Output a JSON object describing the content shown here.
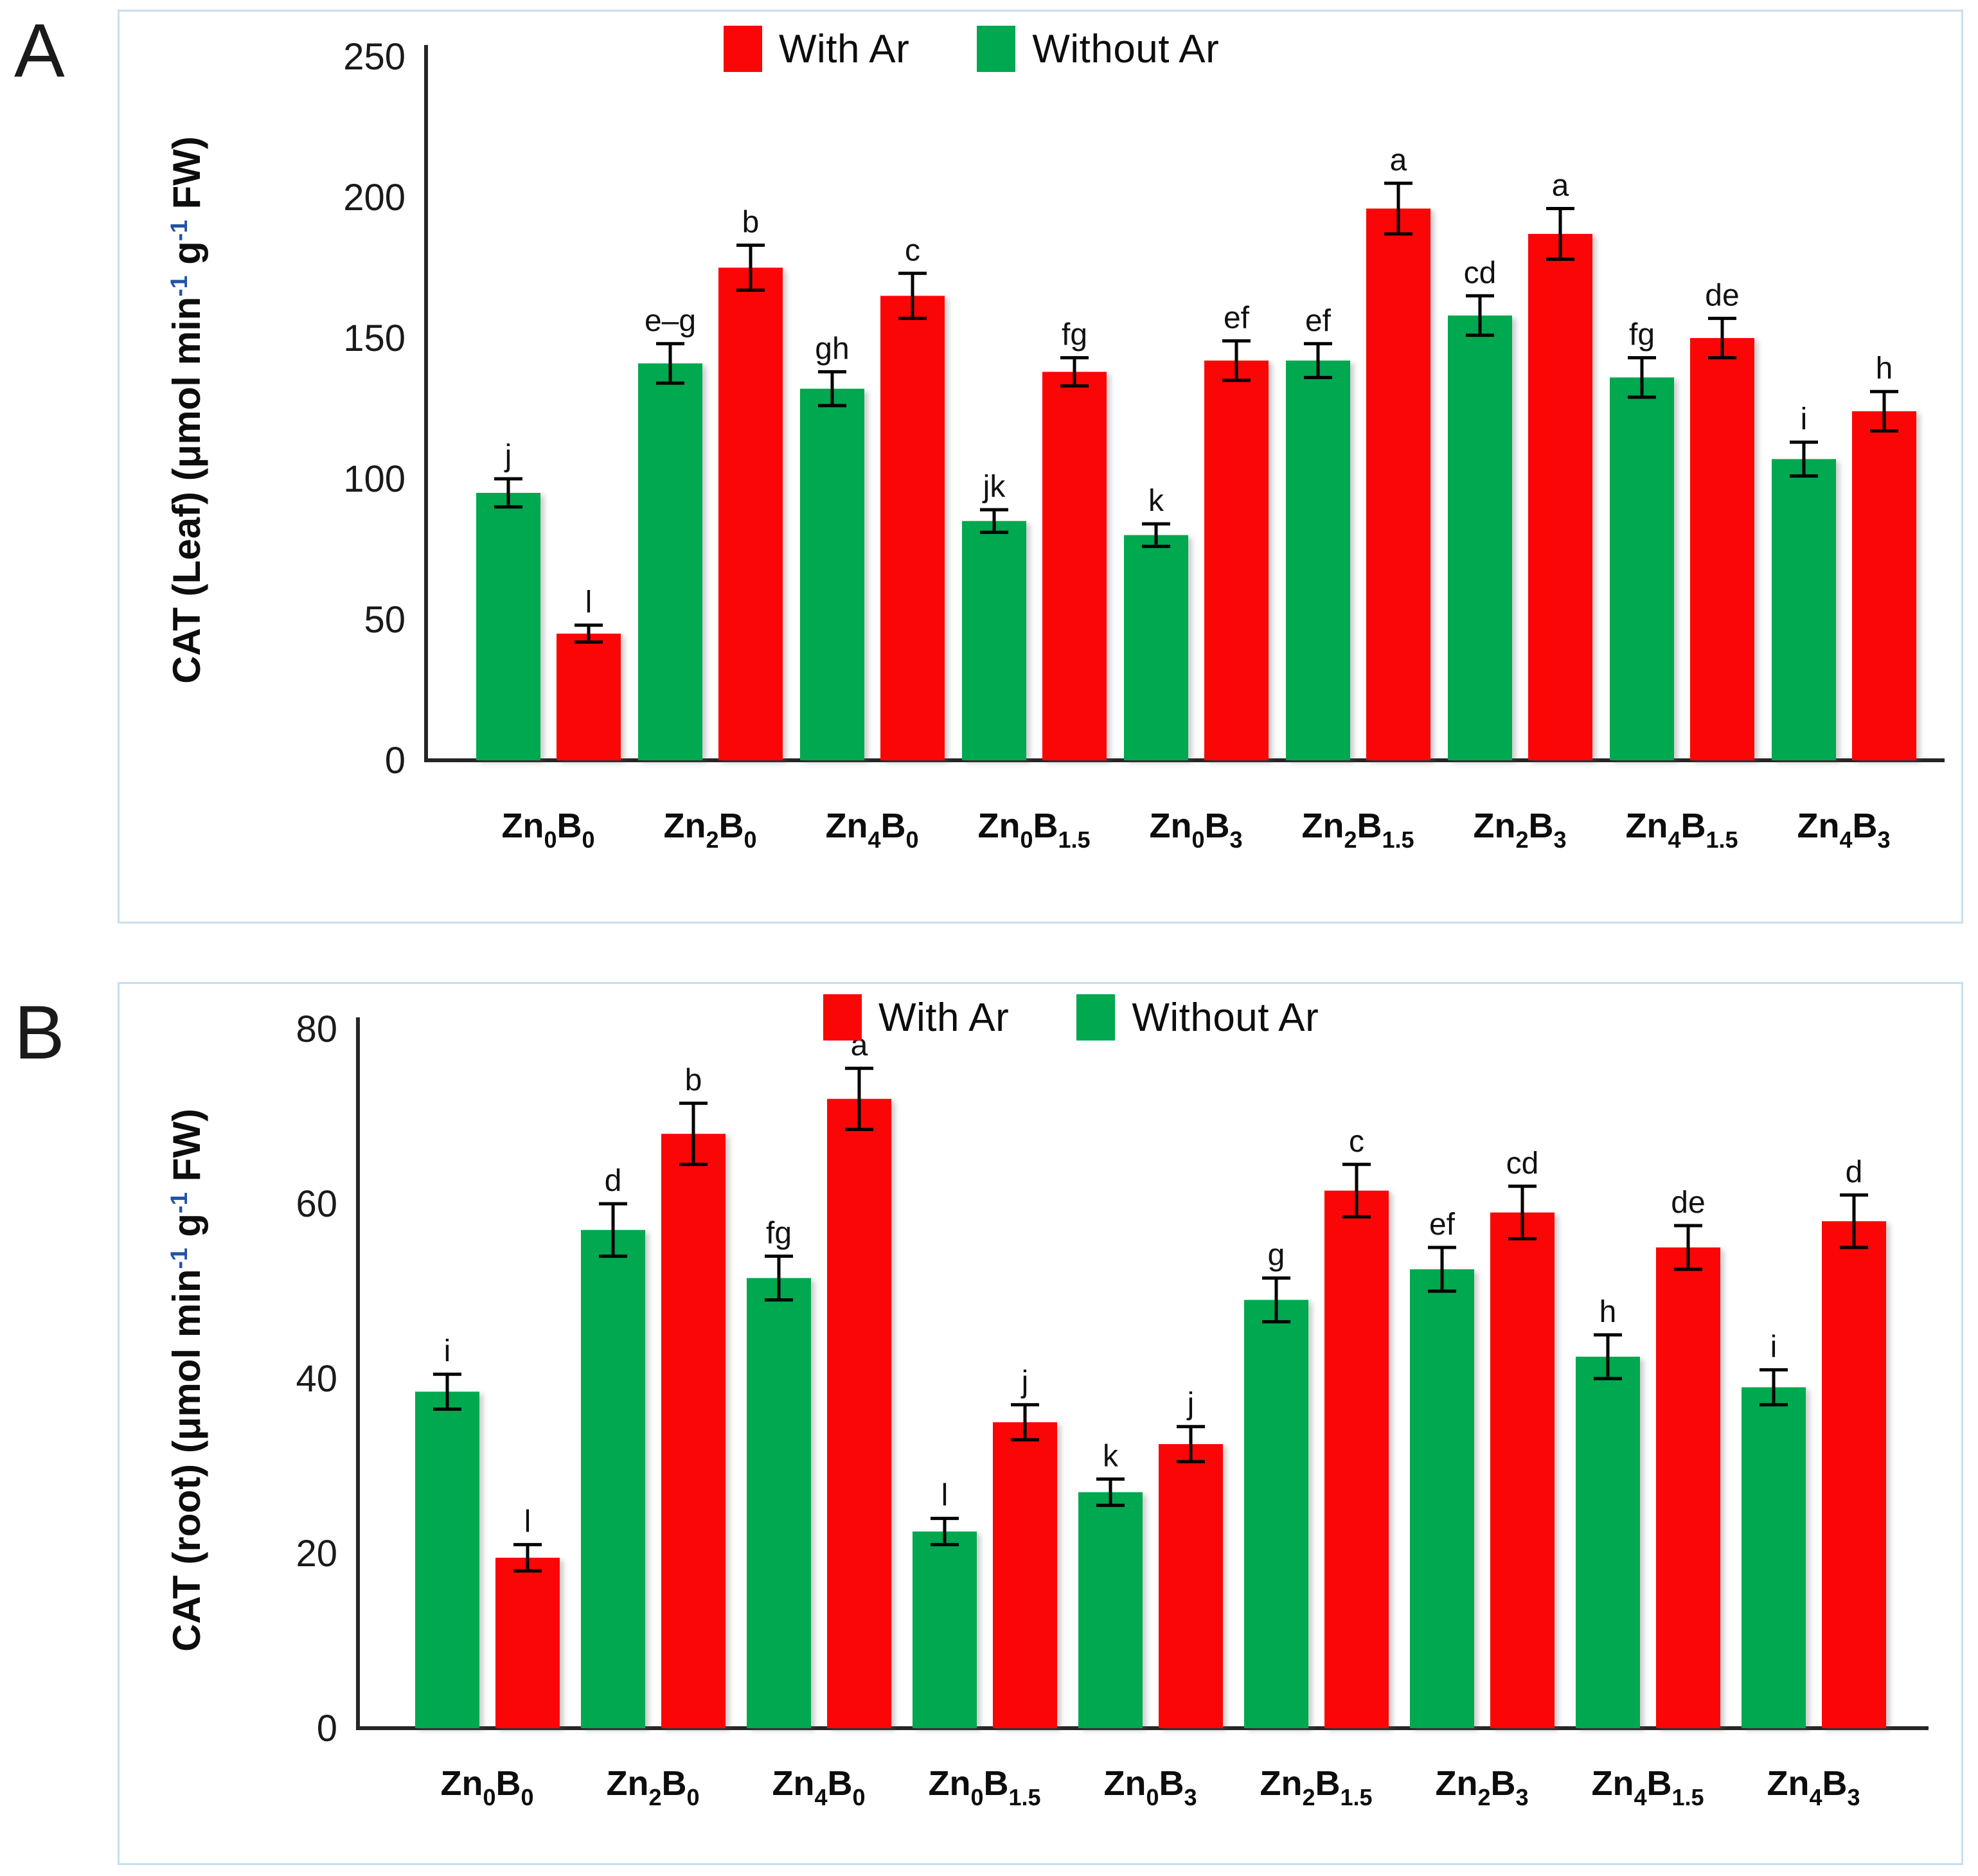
{
  "figure": {
    "panel_a_letter": "A",
    "panel_b_letter": "B"
  },
  "colors": {
    "with_ar_red": "#fb0606",
    "without_ar_green": "#00a84f",
    "axis": "#262626",
    "error_bar": "#000000",
    "tick_text": "#1a1a1a",
    "superscript_blue": "#2053a4",
    "panel_border": "#c7def2"
  },
  "legend": {
    "with_label": "With Ar",
    "without_label": "Without Ar"
  },
  "category_parts": [
    [
      {
        "t": "Zn"
      },
      {
        "t": "0",
        "sub": true
      },
      {
        "t": "B"
      },
      {
        "t": "0",
        "sub": true
      }
    ],
    [
      {
        "t": "Zn"
      },
      {
        "t": "2",
        "sub": true
      },
      {
        "t": "B"
      },
      {
        "t": "0",
        "sub": true
      }
    ],
    [
      {
        "t": "Zn"
      },
      {
        "t": "4",
        "sub": true
      },
      {
        "t": "B"
      },
      {
        "t": "0",
        "sub": true
      }
    ],
    [
      {
        "t": "Zn"
      },
      {
        "t": "0",
        "sub": true
      },
      {
        "t": "B"
      },
      {
        "t": "1.5",
        "sub": true
      }
    ],
    [
      {
        "t": "Zn"
      },
      {
        "t": "0",
        "sub": true
      },
      {
        "t": "B"
      },
      {
        "t": "3",
        "sub": true
      }
    ],
    [
      {
        "t": "Zn"
      },
      {
        "t": "2",
        "sub": true
      },
      {
        "t": "B"
      },
      {
        "t": "1.5",
        "sub": true
      }
    ],
    [
      {
        "t": "Zn"
      },
      {
        "t": "2",
        "sub": true
      },
      {
        "t": "B"
      },
      {
        "t": "3",
        "sub": true
      }
    ],
    [
      {
        "t": "Zn"
      },
      {
        "t": "4",
        "sub": true
      },
      {
        "t": "B"
      },
      {
        "t": "1.5",
        "sub": true
      }
    ],
    [
      {
        "t": "Zn"
      },
      {
        "t": "4",
        "sub": true
      },
      {
        "t": "B"
      },
      {
        "t": "3",
        "sub": true
      }
    ]
  ],
  "chart_data": [
    {
      "type": "bar",
      "panel": "A",
      "title": "",
      "ylabel": "CAT (Leaf) (μmol min-1 g-1 FW)",
      "ylabel_parts": [
        {
          "t": "CAT (Leaf) (μmol min"
        },
        {
          "t": "-1",
          "sup": true
        },
        {
          "t": " g"
        },
        {
          "t": "-1",
          "sup": true
        },
        {
          "t": " FW)"
        }
      ],
      "xlabel": "",
      "ylim": [
        0,
        250
      ],
      "ytick_step": 50,
      "yticks": [
        0,
        50,
        100,
        150,
        200,
        250
      ],
      "grid": false,
      "legend_position": "top-center",
      "categories": [
        "Zn0B0",
        "Zn2B0",
        "Zn4B0",
        "Zn0B1.5",
        "Zn0B3",
        "Zn2B1.5",
        "Zn2B3",
        "Zn4B1.5",
        "Zn4B3"
      ],
      "series": [
        {
          "name": "Without Ar",
          "color_key": "without_ar_green",
          "values": [
            95,
            141,
            132,
            85,
            80,
            142,
            158,
            136,
            107
          ],
          "errors": [
            5,
            7,
            6,
            4,
            4,
            6,
            7,
            7,
            6
          ],
          "letters": [
            "j",
            "e–g",
            "gh",
            "jk",
            "k",
            "ef",
            "cd",
            "fg",
            "i"
          ]
        },
        {
          "name": "With Ar",
          "color_key": "with_ar_red",
          "values": [
            45,
            175,
            165,
            138,
            142,
            196,
            187,
            150,
            124
          ],
          "errors": [
            3,
            8,
            8,
            5,
            7,
            9,
            9,
            7,
            7
          ],
          "letters": [
            "l",
            "b",
            "c",
            "fg",
            "ef",
            "a",
            "a",
            "de",
            "h"
          ]
        }
      ]
    },
    {
      "type": "bar",
      "panel": "B",
      "title": "",
      "ylabel": "CAT (root) (μmol min-1 g-1 FW)",
      "ylabel_parts": [
        {
          "t": "CAT (root) (μmol min"
        },
        {
          "t": "-1",
          "sup": true
        },
        {
          "t": " g"
        },
        {
          "t": "-1",
          "sup": true
        },
        {
          "t": " FW)"
        }
      ],
      "xlabel": "",
      "ylim": [
        0,
        80
      ],
      "ytick_step": 20,
      "yticks": [
        0,
        20,
        40,
        60,
        80
      ],
      "grid": false,
      "legend_position": "top-center",
      "categories": [
        "Zn0B0",
        "Zn2B0",
        "Zn4B0",
        "Zn0B1.5",
        "Zn0B3",
        "Zn2B1.5",
        "Zn2B3",
        "Zn4B1.5",
        "Zn4B3"
      ],
      "series": [
        {
          "name": "Without Ar",
          "color_key": "without_ar_green",
          "values": [
            38.5,
            57,
            51.5,
            22.5,
            27,
            49,
            52.5,
            42.5,
            39
          ],
          "errors": [
            2,
            3,
            2.5,
            1.5,
            1.5,
            2.5,
            2.5,
            2.5,
            2
          ],
          "letters": [
            "i",
            "d",
            "fg",
            "l",
            "k",
            "g",
            "ef",
            "h",
            "i"
          ]
        },
        {
          "name": "With Ar",
          "color_key": "with_ar_red",
          "values": [
            19.5,
            68,
            72,
            35,
            32.5,
            61.5,
            59,
            55,
            58
          ],
          "errors": [
            1.5,
            3.5,
            3.5,
            2,
            2,
            3,
            3,
            2.5,
            3
          ],
          "letters": [
            "l",
            "b",
            "a",
            "j",
            "j",
            "c",
            "cd",
            "de",
            "d"
          ]
        }
      ]
    }
  ]
}
